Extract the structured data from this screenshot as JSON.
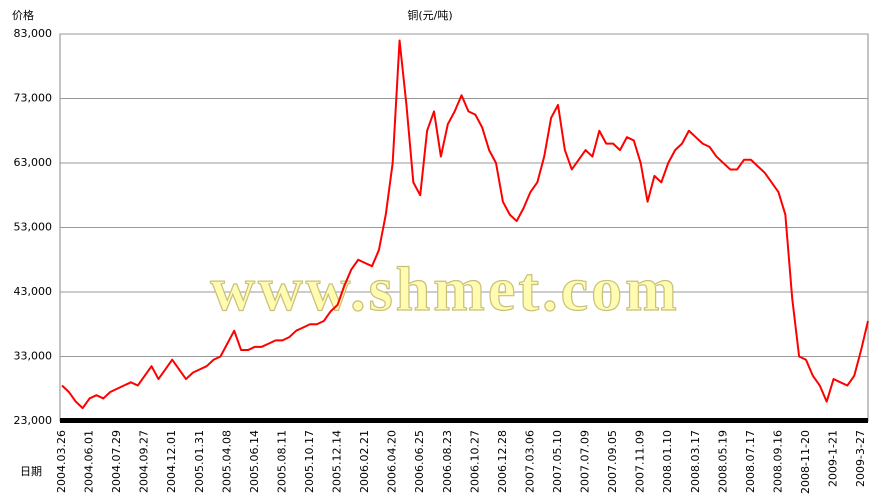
{
  "chart_data": {
    "type": "line",
    "title": "铜(元/吨)",
    "y_label": "价格",
    "x_label": "日期",
    "watermark": "www.shmet.com",
    "categories": [
      "2004.03.26",
      null,
      null,
      null,
      "2004.06.01",
      null,
      null,
      null,
      "2004.07.29",
      null,
      null,
      null,
      "2004.09.27",
      null,
      null,
      null,
      "2004.12.01",
      null,
      null,
      null,
      "2005.01.31",
      null,
      null,
      null,
      "2005.04.08",
      null,
      null,
      null,
      "2005.06.14",
      null,
      null,
      null,
      "2005.08.11",
      null,
      null,
      null,
      "2005.10.17",
      null,
      null,
      null,
      "2005.12.14",
      null,
      null,
      null,
      "2006.02.21",
      null,
      null,
      null,
      "2006.04.20",
      null,
      null,
      null,
      "2006.06.25",
      null,
      null,
      null,
      "2006.08.23",
      null,
      null,
      null,
      "2006.10.27",
      null,
      null,
      null,
      "2006.12.28",
      null,
      null,
      null,
      "2007.03.06",
      null,
      null,
      null,
      "2007.05.10",
      null,
      null,
      null,
      "2007.07.09",
      null,
      null,
      null,
      "2007.09.05",
      null,
      null,
      null,
      "2007.11.09",
      null,
      null,
      null,
      "2008.01.10",
      null,
      null,
      null,
      "2008.03.17",
      null,
      null,
      null,
      "2008.05.19",
      null,
      null,
      null,
      "2008.07.17",
      null,
      null,
      null,
      "2008.09.16",
      null,
      null,
      null,
      "2008-11-20",
      null,
      null,
      null,
      "2009-1-21",
      null,
      null,
      null,
      "2009-3-27",
      null
    ],
    "series": [
      {
        "name": "铜",
        "color": "#ff0000",
        "values": [
          28500,
          27500,
          26000,
          25000,
          26500,
          27000,
          26500,
          27500,
          28000,
          28500,
          29000,
          28500,
          30000,
          31500,
          29500,
          31000,
          32500,
          31000,
          29500,
          30500,
          31000,
          31500,
          32500,
          33000,
          35000,
          37000,
          34000,
          34000,
          34500,
          34500,
          35000,
          35500,
          35500,
          36000,
          37000,
          37500,
          38000,
          38000,
          38500,
          40000,
          41000,
          44000,
          46500,
          48000,
          47500,
          47000,
          49500,
          55000,
          63000,
          82000,
          72000,
          60000,
          58000,
          68000,
          71000,
          64000,
          69000,
          71000,
          73500,
          71000,
          70500,
          68500,
          65000,
          63000,
          57000,
          55000,
          54000,
          56000,
          58500,
          60000,
          64000,
          70000,
          72000,
          65000,
          62000,
          63500,
          65000,
          64000,
          68000,
          66000,
          66000,
          65000,
          67000,
          66500,
          63000,
          57000,
          61000,
          60000,
          63000,
          65000,
          66000,
          68000,
          67000,
          66000,
          65500,
          64000,
          63000,
          62000,
          62000,
          63500,
          63500,
          62500,
          61500,
          60000,
          58500,
          55000,
          42000,
          33000,
          32500,
          30000,
          28500,
          26000,
          29500,
          29000,
          28500,
          30000,
          34000,
          38500
        ]
      }
    ],
    "ylim": [
      23000,
      83000
    ],
    "yticks": [
      {
        "value": 23000,
        "label": "23,000"
      },
      {
        "value": 33000,
        "label": "33,000"
      },
      {
        "value": 43000,
        "label": "43,000"
      },
      {
        "value": 53000,
        "label": "53,000"
      },
      {
        "value": 63000,
        "label": "63,000"
      },
      {
        "value": 73000,
        "label": "73,000"
      },
      {
        "value": 83000,
        "label": "83,000"
      }
    ],
    "grid": true
  }
}
